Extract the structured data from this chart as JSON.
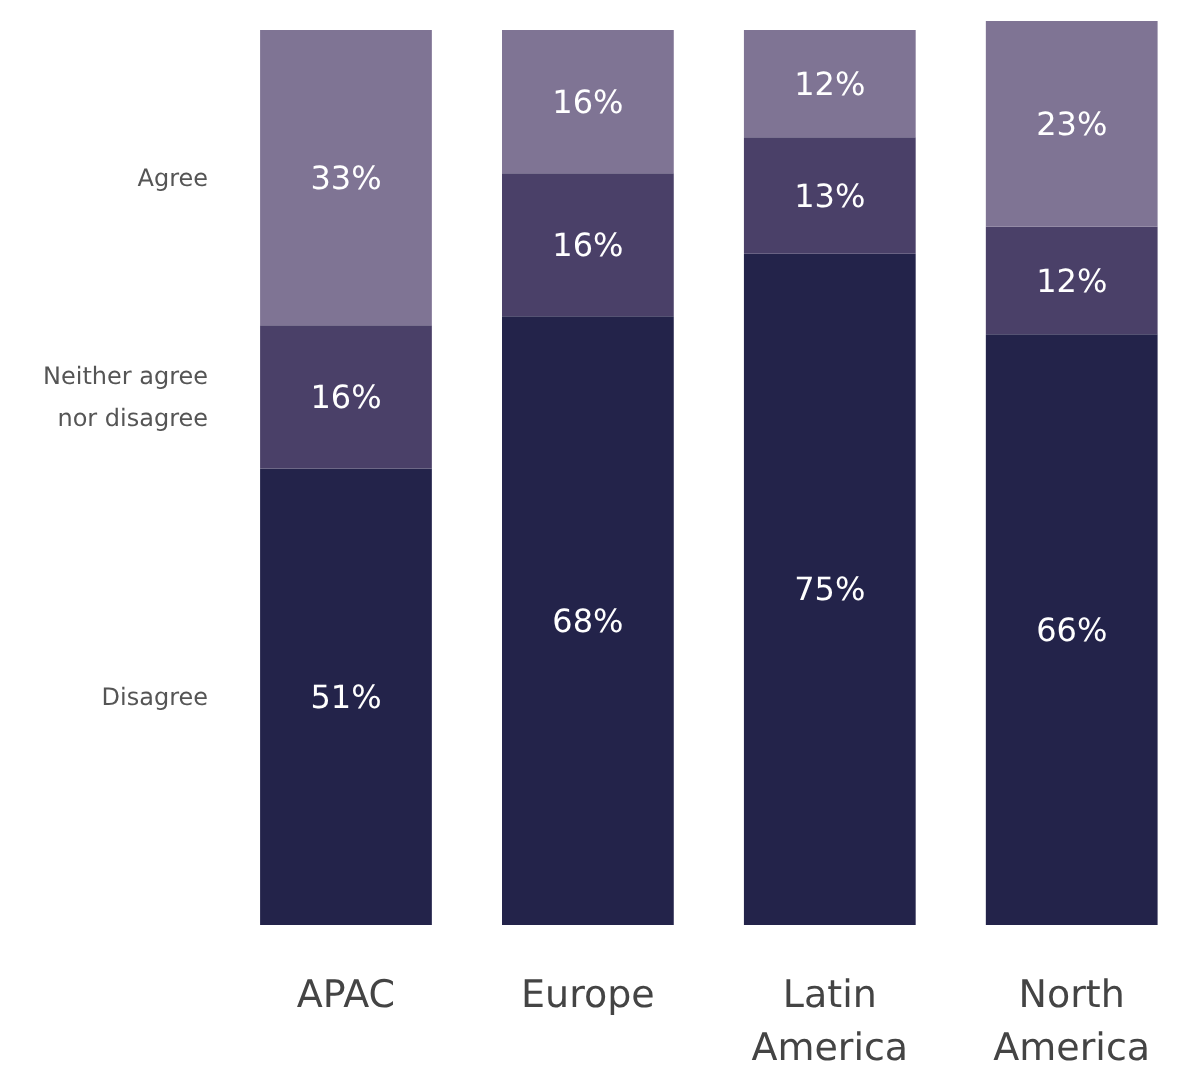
{
  "chart_data": {
    "type": "bar",
    "stacked": true,
    "grid": false,
    "categories": [
      "APAC",
      "Europe",
      "Latin America",
      "North America"
    ],
    "series": [
      {
        "name": "Disagree",
        "color": "#23234a",
        "values": [
          51,
          68,
          75,
          66
        ],
        "value_labels": [
          "51%",
          "68%",
          "75%",
          "66%"
        ]
      },
      {
        "name": "Neither agree nor disagree",
        "color": "#4a4068",
        "values": [
          16,
          16,
          13,
          12
        ],
        "value_labels": [
          "16%",
          "16%",
          "13%",
          "12%"
        ]
      },
      {
        "name": "Agree",
        "color": "#7f7494",
        "values": [
          33,
          16,
          12,
          23
        ],
        "value_labels": [
          "33%",
          "16%",
          "12%",
          "23%"
        ]
      }
    ]
  }
}
